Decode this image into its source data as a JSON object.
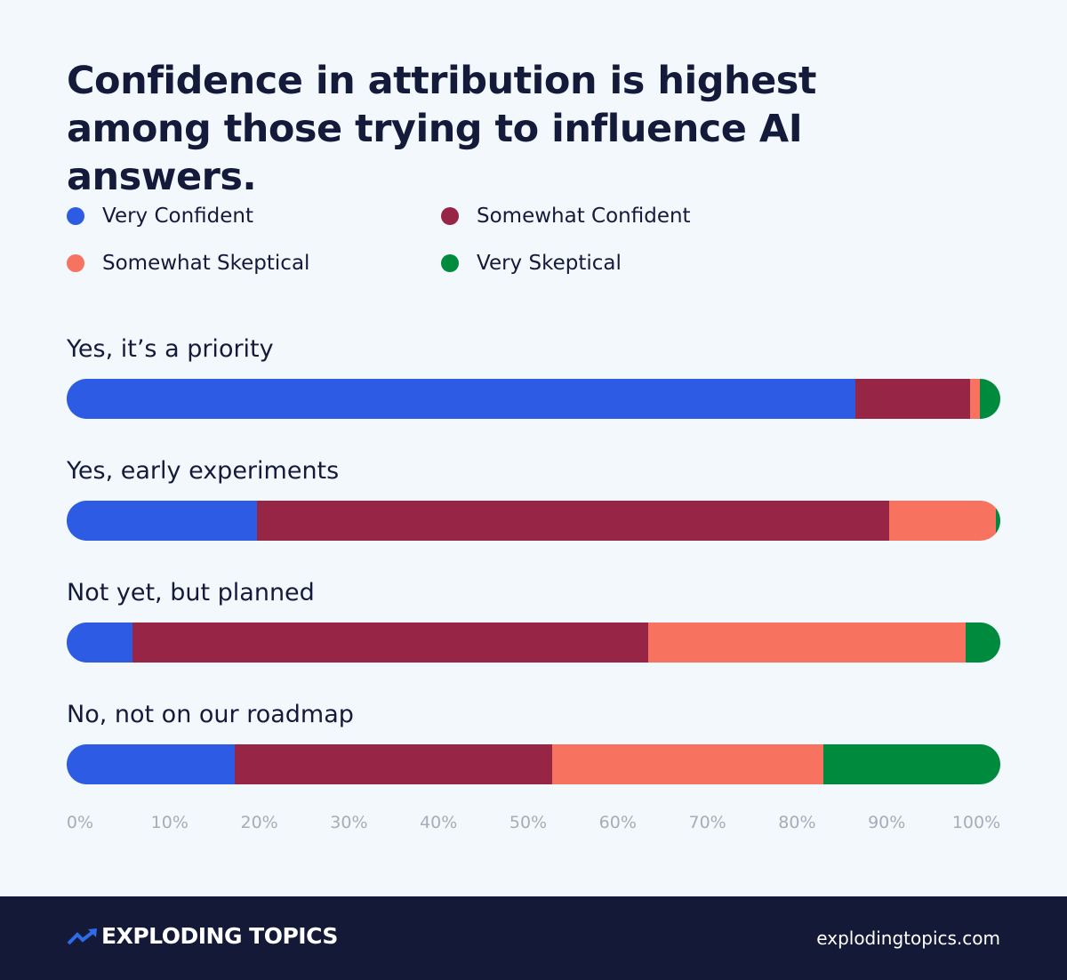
{
  "chart_data": {
    "type": "bar",
    "orientation": "horizontal",
    "stacked": true,
    "title": "Confidence in attribution is highest among those trying to influence AI answers.",
    "categories": [
      "Yes, it’s a priority",
      "Yes, early experiments",
      "Not yet, but planned",
      "No, not on our roadmap"
    ],
    "series": [
      {
        "name": "Very Confident",
        "color": "#2d5be3",
        "values": [
          84.5,
          20.4,
          7.0,
          18.0
        ]
      },
      {
        "name": "Somewhat Confident",
        "color": "#962546",
        "values": [
          12.3,
          67.7,
          55.3,
          34.0
        ]
      },
      {
        "name": "Somewhat Skeptical",
        "color": "#f7735f",
        "values": [
          1.0,
          11.4,
          34.0,
          29.0
        ]
      },
      {
        "name": "Very Skeptical",
        "color": "#008a3e",
        "values": [
          2.2,
          0.5,
          3.7,
          19.0
        ]
      }
    ],
    "xlim": [
      0,
      100
    ],
    "xticks": [
      "0%",
      "10%",
      "20%",
      "30%",
      "40%",
      "50%",
      "60%",
      "70%",
      "80%",
      "90%",
      "100%"
    ],
    "grid": false,
    "legend_position": "top"
  },
  "footer": {
    "brand": "EXPLODING TOPICS",
    "url": "explodingtopics.com"
  }
}
